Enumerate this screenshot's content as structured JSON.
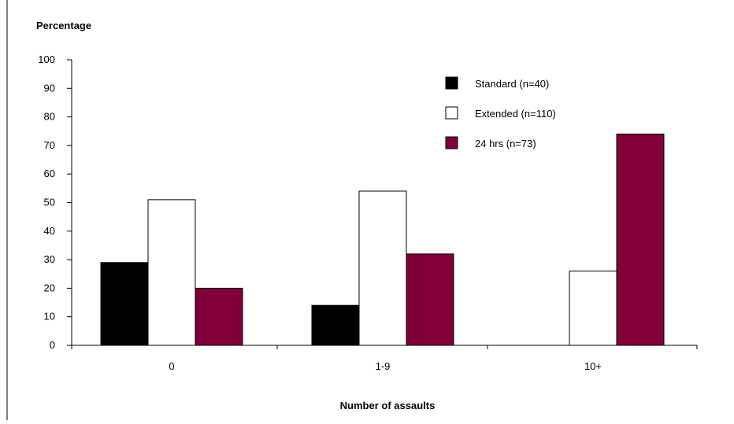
{
  "chart_data": {
    "type": "bar",
    "title": "",
    "ylabel": "Percentage",
    "xlabel": "Number of assaults",
    "categories": [
      "0",
      "1-9",
      "10+"
    ],
    "ylim": [
      0,
      100
    ],
    "yticks": [
      0,
      10,
      20,
      30,
      40,
      50,
      60,
      70,
      80,
      90,
      100
    ],
    "grid": false,
    "legend_position": "top-right",
    "series": [
      {
        "name": "Standard (n=40)",
        "color": "#000000",
        "values": [
          29,
          14,
          null
        ]
      },
      {
        "name": "Extended (n=110)",
        "color": "#ffffff",
        "values": [
          51,
          54,
          26
        ]
      },
      {
        "name": "24 hrs (n=73)",
        "color": "#80003a",
        "values": [
          20,
          32,
          74
        ]
      }
    ]
  }
}
